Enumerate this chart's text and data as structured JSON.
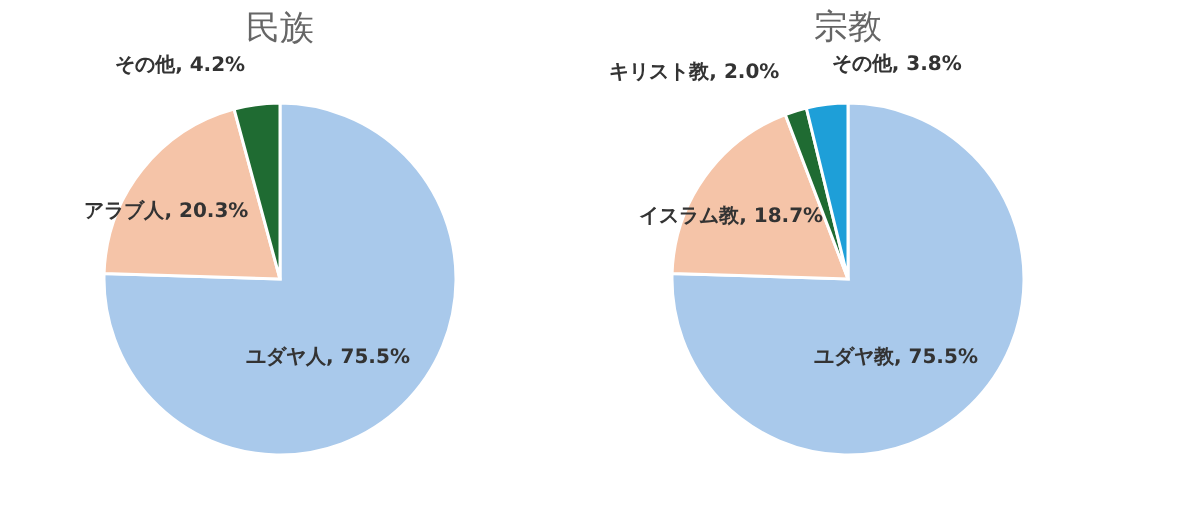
{
  "chart_data": [
    {
      "type": "pie",
      "title": "民族",
      "categories": [
        "ユダヤ人",
        "アラブ人",
        "その他"
      ],
      "values": [
        75.5,
        20.3,
        4.2
      ],
      "colors": [
        "#a9c9eb",
        "#f5c4a8",
        "#1f6b32"
      ],
      "value_labels": [
        "75.5%",
        "20.3%",
        "4.2%"
      ]
    },
    {
      "type": "pie",
      "title": "宗教",
      "categories": [
        "ユダヤ教",
        "イスラム教",
        "キリスト教",
        "その他"
      ],
      "values": [
        75.5,
        18.7,
        2.0,
        3.8
      ],
      "colors": [
        "#a9c9eb",
        "#f5c4a8",
        "#1f6b32",
        "#1e9fd8"
      ],
      "value_labels": [
        "75.5%",
        "18.7%",
        "2.0%",
        "3.8%"
      ]
    }
  ]
}
